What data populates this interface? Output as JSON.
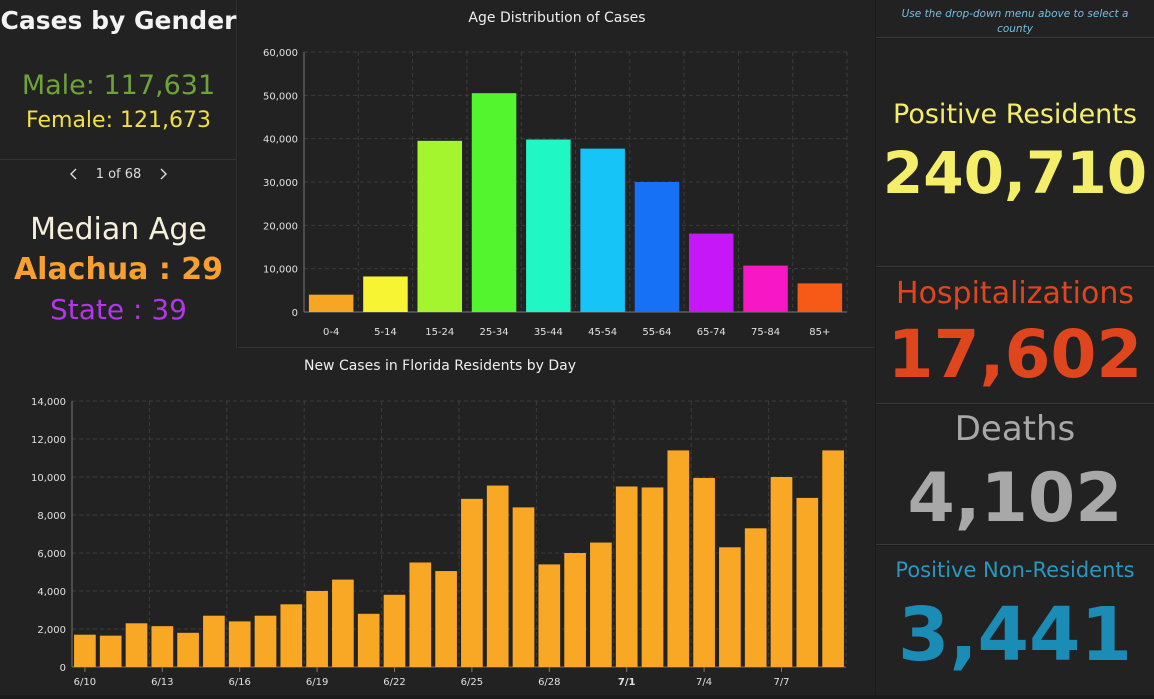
{
  "gender": {
    "title": "Cases by Gender",
    "male": "Male: 117,631",
    "female": "Female: 121,673"
  },
  "pager": {
    "text": "1 of 68"
  },
  "median": {
    "title": "Median Age",
    "county": "Alachua : 29",
    "state": "State : 39"
  },
  "select_hint": "Use the drop-down menu above to select a county",
  "stats": {
    "positive_label": "Positive Residents",
    "positive_value": "240,710",
    "hosp_label": "Hospitalizations",
    "hosp_value": "17,602",
    "deaths_label": "Deaths",
    "deaths_value": "4,102",
    "nonres_label": "Positive Non-Residents",
    "nonres_value": "3,441"
  },
  "colors": {
    "bar_daily": "#f9a825",
    "grid": "#3c3c3c",
    "axis_text": "#e0e0e0"
  },
  "chart_data": [
    {
      "type": "bar",
      "title": "Age Distribution of Cases",
      "categories": [
        "0-4",
        "5-14",
        "15-24",
        "25-34",
        "35-44",
        "45-54",
        "55-64",
        "65-74",
        "75-84",
        "85+"
      ],
      "values": [
        4000,
        8200,
        39500,
        50500,
        39800,
        37700,
        30000,
        18100,
        10700,
        6600
      ],
      "colors": [
        "#f6a623",
        "#f7f433",
        "#a4f52e",
        "#52f52e",
        "#1ff7c4",
        "#16c4f7",
        "#1771f7",
        "#c517f7",
        "#f717c4",
        "#f75a17"
      ],
      "yticks": [
        "0",
        "10,000",
        "20,000",
        "30,000",
        "40,000",
        "50,000",
        "60,000"
      ],
      "ylim": [
        0,
        60000
      ]
    },
    {
      "type": "bar",
      "title": "New Cases in Florida Residents by Day",
      "categories": [
        "6/10",
        "6/11",
        "6/12",
        "6/13",
        "6/14",
        "6/15",
        "6/16",
        "6/17",
        "6/18",
        "6/19",
        "6/20",
        "6/21",
        "6/22",
        "6/23",
        "6/24",
        "6/25",
        "6/26",
        "6/27",
        "6/28",
        "6/29",
        "6/30",
        "7/1",
        "7/2",
        "7/3",
        "7/4",
        "7/5",
        "7/6",
        "7/7",
        "7/8",
        "7/9"
      ],
      "values": [
        1700,
        1650,
        2300,
        2150,
        1800,
        2700,
        2400,
        2700,
        3300,
        4000,
        4600,
        2800,
        3800,
        5500,
        5050,
        8850,
        9550,
        8400,
        5400,
        6000,
        6550,
        9500,
        9450,
        11400,
        9950,
        6300,
        7300,
        10000,
        8900,
        11400
      ],
      "xtick_labels": [
        "6/10",
        "6/13",
        "6/16",
        "6/19",
        "6/22",
        "6/25",
        "6/28",
        "7/1",
        "7/4",
        "7/7"
      ],
      "yticks": [
        "0",
        "2,000",
        "4,000",
        "6,000",
        "8,000",
        "10,000",
        "12,000",
        "14,000"
      ],
      "ylim": [
        0,
        14000
      ]
    }
  ]
}
